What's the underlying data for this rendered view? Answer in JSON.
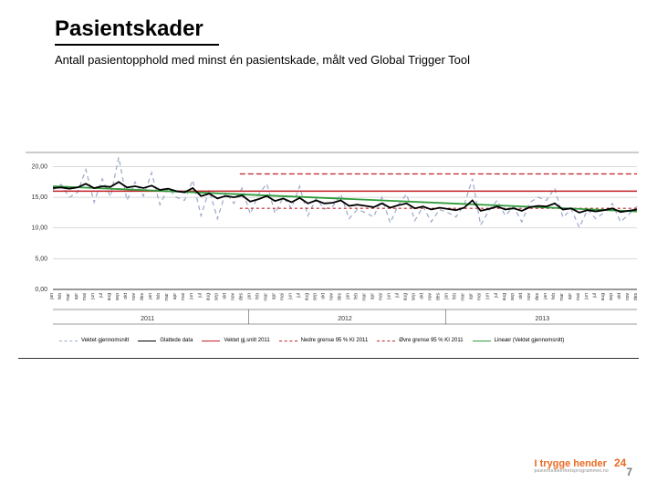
{
  "title": "Pasientskader",
  "subtitle": "Antall pasientopphold med minst én pasientskade, målt ved Global Trigger Tool",
  "chart": {
    "type": "line",
    "background_color": "#ffffff",
    "grid_color": "#b5b5b5",
    "axis_color": "#333333",
    "ylim": [
      0,
      22
    ],
    "yticks": [
      0.0,
      5.0,
      10.0,
      15.0,
      20.0
    ],
    "ytick_labels": [
      "0,00",
      "5,00",
      "10,00",
      "15,00",
      "20,00"
    ],
    "label_fontsize": 7,
    "tick_fontsize": 5,
    "x_count": 72,
    "x_month_labels": [
      "jan",
      "feb",
      "mar",
      "apr",
      "mai",
      "jun",
      "jul",
      "aug",
      "sep",
      "okt",
      "nov",
      "des"
    ],
    "x_year_groups": [
      {
        "label": "2011",
        "start": 0,
        "end": 24
      },
      {
        "label": "2012",
        "start": 24,
        "end": 48
      },
      {
        "label": "2013",
        "start": 48,
        "end": 72
      }
    ],
    "series": {
      "vektet_gjennomsnitt": {
        "label": "Vektet gjennomsnitt",
        "color": "#9aa8c7",
        "dash": "5,4",
        "width": 1.2,
        "y": [
          16.2,
          17.1,
          15.0,
          15.8,
          19.5,
          14.2,
          18.0,
          15.1,
          21.5,
          14.5,
          17.5,
          15.2,
          19.0,
          13.8,
          16.5,
          15.0,
          14.5,
          17.8,
          12.0,
          16.2,
          11.5,
          15.8,
          14.0,
          16.5,
          12.3,
          15.5,
          17.2,
          12.4,
          15.0,
          13.2,
          16.8,
          12.0,
          14.8,
          13.1,
          13.5,
          15.5,
          11.5,
          13.0,
          12.5,
          11.8,
          15.0,
          10.8,
          13.8,
          15.5,
          11.2,
          13.5,
          11.0,
          13.0,
          12.5,
          11.8,
          13.8,
          18.0,
          10.5,
          12.8,
          14.5,
          12.0,
          13.5,
          11.0,
          14.2,
          15.0,
          14.5,
          16.5,
          11.7,
          13.1,
          10.1,
          13.0,
          11.5,
          12.5,
          14.0,
          11.0,
          12.2,
          13.5
        ]
      },
      "glattede_data": {
        "label": "Glattede data",
        "color": "#000000",
        "dash": "",
        "width": 1.8,
        "y": [
          16.5,
          16.6,
          16.4,
          16.6,
          17.2,
          16.5,
          16.8,
          16.7,
          17.5,
          16.6,
          16.8,
          16.5,
          16.9,
          16.2,
          16.4,
          16.0,
          15.8,
          16.5,
          15.2,
          15.6,
          14.8,
          15.2,
          15.0,
          15.3,
          14.3,
          14.7,
          15.2,
          14.4,
          14.8,
          14.2,
          14.9,
          14.0,
          14.5,
          14.0,
          14.1,
          14.5,
          13.6,
          13.8,
          13.6,
          13.4,
          14.0,
          13.3,
          13.7,
          14.0,
          13.2,
          13.5,
          13.0,
          13.3,
          13.1,
          12.9,
          13.3,
          14.5,
          12.8,
          13.1,
          13.5,
          13.0,
          13.2,
          12.8,
          13.4,
          13.6,
          13.5,
          14.0,
          13.0,
          13.2,
          12.5,
          12.9,
          12.7,
          12.9,
          13.2,
          12.6,
          12.8,
          13.0
        ]
      },
      "vektet_snitt_2011": {
        "label": "Vektet gj.snitt 2011",
        "color": "#c22026",
        "dash": "",
        "width": 1.4,
        "const_y": 16.0
      },
      "nedre_ki_2011": {
        "label": "Nedre grense 95 % KI 2011",
        "color": "#c22026",
        "dash": "3,3",
        "width": 1.2,
        "const_y": 13.2
      },
      "ovre_ki_2011": {
        "label": "Øvre grense 95 % KI 2011",
        "color": "#c22026",
        "dash": "6,3",
        "width": 1.2,
        "const_y": 18.8
      },
      "trend": {
        "label": "Lineær (Vektet gjennomsnitt)",
        "color": "#2e9b3b",
        "dash": "",
        "width": 1.8,
        "y0": 16.8,
        "y1": 12.7
      }
    },
    "legend_order": [
      "vektet_gjennomsnitt",
      "glattede_data",
      "vektet_snitt_2011",
      "nedre_ki_2011",
      "ovre_ki_2011",
      "trend"
    ]
  },
  "footer": {
    "brand_line1": "I trygge hender",
    "brand_line2": "pasientsikkerhetsprogrammet.no",
    "logo_24": "24",
    "logo_7": "7",
    "brand_color": "#e96b24"
  }
}
